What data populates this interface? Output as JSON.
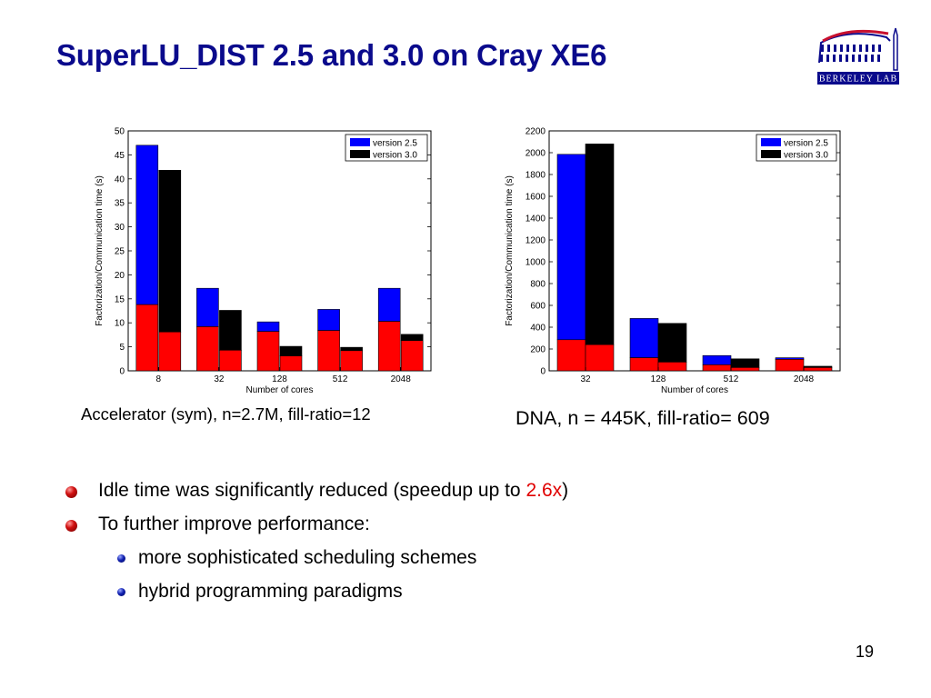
{
  "slide": {
    "title": "SuperLU_DIST 2.5 and 3.0 on Cray XE6",
    "page_number": "19",
    "logo_text": "Berkeley Lab"
  },
  "bullets": [
    {
      "level": 1,
      "text": "Idle time was significantly reduced (speedup up to ",
      "highlight": "2.6x",
      "suffix": ")"
    },
    {
      "level": 1,
      "text": "To further improve performance:"
    },
    {
      "level": 2,
      "text": "more sophisticated scheduling schemes"
    },
    {
      "level": 2,
      "text": "hybrid programming paradigms"
    }
  ],
  "colors": {
    "title": "#0a0a8c",
    "version_2_5": "#0000ff",
    "version_3_0": "#000000",
    "stack_base": "#ff0000",
    "highlight": "#e00000"
  },
  "chart_data": [
    {
      "type": "bar",
      "subtype": "grouped-stacked",
      "caption": "Accelerator (sym), n=2.7M, fill-ratio=12",
      "xlabel": "Number of cores",
      "ylabel": "Factorization/Communication time (s)",
      "categories": [
        "8",
        "32",
        "128",
        "512",
        "2048"
      ],
      "ylim": [
        0,
        50
      ],
      "yticks": [
        0,
        5,
        10,
        15,
        20,
        25,
        30,
        35,
        40,
        45,
        50
      ],
      "legend": "top-right",
      "grid": false,
      "series": [
        {
          "name": "version 2.5",
          "total": [
            47,
            17.2,
            10.2,
            12.8,
            17.2
          ],
          "red_part": [
            13.8,
            9.2,
            8.2,
            8.4,
            10.3
          ]
        },
        {
          "name": "version 3.0",
          "total": [
            41.8,
            12.6,
            5.1,
            4.9,
            7.6
          ],
          "red_part": [
            8.1,
            4.3,
            3.1,
            4.2,
            6.3
          ]
        }
      ]
    },
    {
      "type": "bar",
      "subtype": "grouped-stacked",
      "caption": "DNA, n = 445K, fill-ratio= 609",
      "xlabel": "Number of cores",
      "ylabel": "Factorization/Communication time (s)",
      "categories": [
        "32",
        "128",
        "512",
        "2048"
      ],
      "ylim": [
        0,
        2200
      ],
      "yticks": [
        0,
        200,
        400,
        600,
        800,
        1000,
        1200,
        1400,
        1600,
        1800,
        2000,
        2200
      ],
      "legend": "top-right",
      "grid": false,
      "series": [
        {
          "name": "version 2.5",
          "total": [
            1985,
            480,
            140,
            120
          ],
          "red_part": [
            285,
            120,
            55,
            105
          ]
        },
        {
          "name": "version 3.0",
          "total": [
            2080,
            435,
            110,
            42
          ],
          "red_part": [
            240,
            80,
            30,
            30
          ]
        }
      ]
    }
  ]
}
